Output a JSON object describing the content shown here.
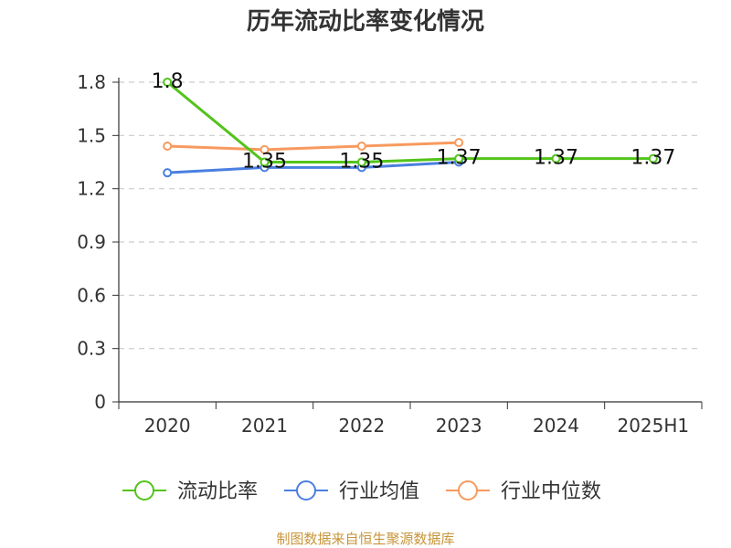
{
  "colors": {
    "series": [
      "#52c41a",
      "#4a7fe0",
      "#f79a5e"
    ],
    "grid": "#cccccc",
    "axis": "#333333",
    "source": "#c8953a"
  },
  "chart_data": {
    "type": "line",
    "title": "历年流动比率变化情况",
    "categories": [
      "2020",
      "2021",
      "2022",
      "2023",
      "2024",
      "2025H1"
    ],
    "y_ticks": [
      "0",
      "0.3",
      "0.6",
      "0.9",
      "1.2",
      "1.5",
      "1.8"
    ],
    "ylim": [
      0,
      1.8
    ],
    "grid": "horizontal dashed",
    "legend_position": "bottom",
    "series": [
      {
        "name": "流动比率",
        "values": [
          1.8,
          1.35,
          1.35,
          1.37,
          1.37,
          1.37
        ],
        "labels": [
          "1.8",
          "1.35",
          "1.35",
          "1.37",
          "1.37",
          "1.37"
        ]
      },
      {
        "name": "行业均值",
        "values": [
          1.29,
          1.32,
          1.32,
          1.35,
          null,
          null
        ],
        "labels": []
      },
      {
        "name": "行业中位数",
        "values": [
          1.44,
          1.42,
          1.44,
          1.46,
          null,
          null
        ],
        "labels": []
      }
    ]
  },
  "source_note": "制图数据来自恒生聚源数据库"
}
